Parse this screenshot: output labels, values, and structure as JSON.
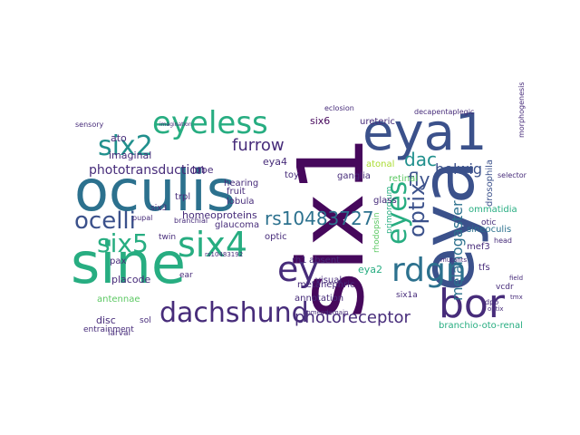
{
  "palette": {
    "dark_purple": "#46085c",
    "purple": "#472c7a",
    "indigo": "#3b518b",
    "blue": "#2c718e",
    "teal_blue": "#21908d",
    "teal": "#27ad81",
    "green": "#5cc863",
    "lime": "#aadc32",
    "yellow": "#e2e418"
  },
  "words": [
    {
      "text": "sine",
      "color": "teal"
    },
    {
      "text": "six1",
      "color": "dark_purple"
    },
    {
      "text": "oculis",
      "color": "blue"
    },
    {
      "text": "eya",
      "color": "indigo"
    },
    {
      "text": "eya1",
      "color": "indigo"
    },
    {
      "text": "eyeless",
      "color": "teal"
    },
    {
      "text": "bor",
      "color": "purple"
    },
    {
      "text": "six4",
      "color": "teal"
    },
    {
      "text": "dachshund",
      "color": "purple"
    },
    {
      "text": "ey",
      "color": "purple"
    },
    {
      "text": "rdgn",
      "color": "blue"
    },
    {
      "text": "six2",
      "color": "teal_blue"
    },
    {
      "text": "ocelli",
      "color": "indigo"
    },
    {
      "text": "eyes",
      "color": "teal"
    },
    {
      "text": "six5",
      "color": "teal"
    },
    {
      "text": "optix",
      "color": "indigo"
    },
    {
      "text": "photoreceptor",
      "color": "purple"
    },
    {
      "text": "rs10483727",
      "color": "blue"
    },
    {
      "text": "melanogaster",
      "color": "blue"
    },
    {
      "text": "furrow",
      "color": "purple"
    },
    {
      "text": "dac",
      "color": "teal_blue"
    },
    {
      "text": "fly",
      "color": "indigo"
    },
    {
      "text": "bolwig",
      "color": "indigo"
    },
    {
      "text": "phototransduction",
      "color": "purple"
    },
    {
      "text": "six6",
      "color": "dark_purple"
    },
    {
      "text": "eya4",
      "color": "purple"
    },
    {
      "text": "ato",
      "color": "purple"
    },
    {
      "text": "imaginal",
      "color": "purple"
    },
    {
      "text": "lobe",
      "color": "purple"
    },
    {
      "text": "hearing",
      "color": "purple"
    },
    {
      "text": "toy",
      "color": "purple"
    },
    {
      "text": "ganglia",
      "color": "purple"
    },
    {
      "text": "fruit",
      "color": "purple"
    },
    {
      "text": "homeoproteins",
      "color": "purple"
    },
    {
      "text": "lobula",
      "color": "purple"
    },
    {
      "text": "glaucoma",
      "color": "purple"
    },
    {
      "text": "optic",
      "color": "purple"
    },
    {
      "text": "rh1",
      "color": "purple"
    },
    {
      "text": "absent",
      "color": "purple"
    },
    {
      "text": "eya2",
      "color": "teal"
    },
    {
      "text": "primordium",
      "color": "teal"
    },
    {
      "text": "sineoculis",
      "color": "blue"
    },
    {
      "text": "ommatidia",
      "color": "teal"
    },
    {
      "text": "drosophila",
      "color": "indigo"
    },
    {
      "text": "atonal",
      "color": "lime"
    },
    {
      "text": "retinal",
      "color": "green"
    },
    {
      "text": "selector",
      "color": "purple"
    },
    {
      "text": "placode",
      "color": "purple"
    },
    {
      "text": "pax",
      "color": "purple"
    },
    {
      "text": "antennae",
      "color": "green"
    },
    {
      "text": "metanephric",
      "color": "purple"
    },
    {
      "text": "visual",
      "color": "purple"
    },
    {
      "text": "annotation",
      "color": "purple"
    },
    {
      "text": "disc",
      "color": "purple"
    },
    {
      "text": "sol",
      "color": "purple"
    },
    {
      "text": "larval",
      "color": "purple"
    },
    {
      "text": "entrainment",
      "color": "purple"
    },
    {
      "text": "branchio-oto-renal",
      "color": "teal"
    },
    {
      "text": "six1a",
      "color": "purple"
    },
    {
      "text": "mef3",
      "color": "purple"
    },
    {
      "text": "tfs",
      "color": "purple"
    },
    {
      "text": "vcdr",
      "color": "purple"
    },
    {
      "text": "dpp",
      "color": "purple"
    },
    {
      "text": "otic",
      "color": "purple"
    },
    {
      "text": "head",
      "color": "purple"
    },
    {
      "text": "ureteric",
      "color": "purple"
    },
    {
      "text": "six3",
      "color": "purple"
    },
    {
      "text": "trpl",
      "color": "purple"
    },
    {
      "text": "twin",
      "color": "purple"
    },
    {
      "text": "ear",
      "color": "purple"
    },
    {
      "text": "glass",
      "color": "purple"
    },
    {
      "text": "sensory",
      "color": "purple"
    },
    {
      "text": "eclosion",
      "color": "purple"
    },
    {
      "text": "decapentaplegic",
      "color": "purple"
    },
    {
      "text": "morphogenesis",
      "color": "purple"
    },
    {
      "text": "branchial",
      "color": "purple"
    },
    {
      "text": "rhodopsin",
      "color": "green"
    },
    {
      "text": "pupal",
      "color": "purple"
    },
    {
      "text": "rs10483192",
      "color": "purple"
    },
    {
      "text": "homeodomain",
      "color": "purple"
    },
    {
      "text": "field",
      "color": "purple"
    },
    {
      "text": "mutants",
      "color": "purple"
    },
    {
      "text": "optix",
      "color": "purple"
    },
    {
      "text": "tmx",
      "color": "purple"
    },
    {
      "text": "imagination",
      "color": "purple"
    }
  ]
}
